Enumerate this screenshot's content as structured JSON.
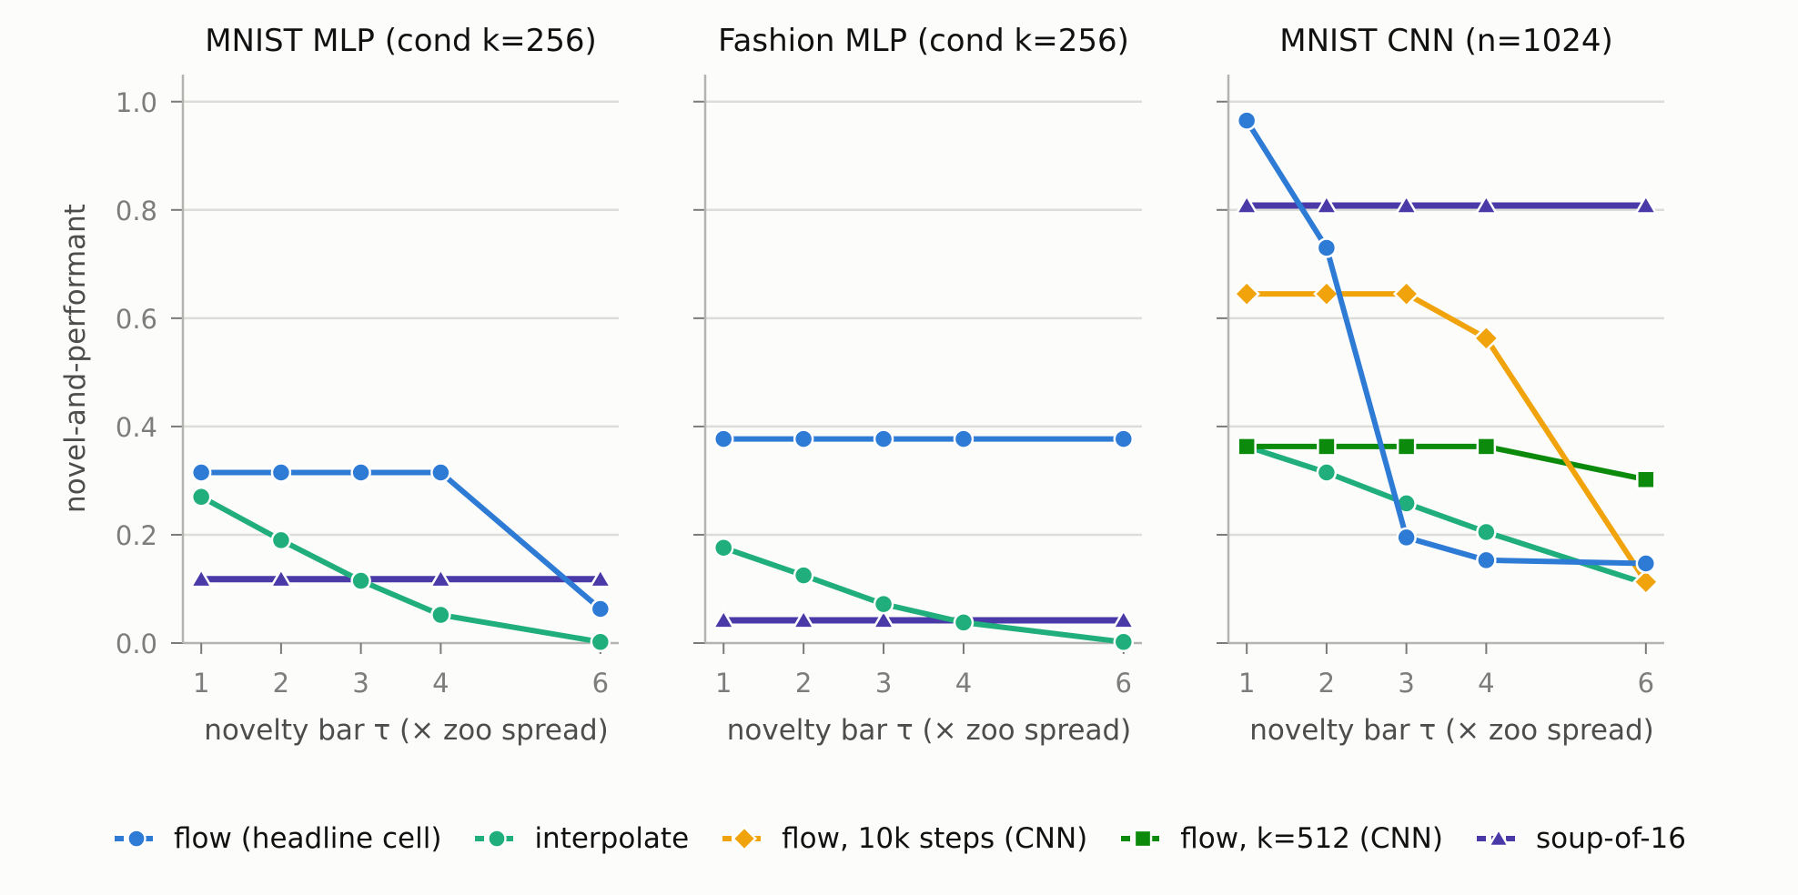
{
  "chart_data": {
    "type": "line",
    "ylabel": "novel-and-performant",
    "xlabel": "novelty bar τ (× zoo spread)",
    "x": [
      1,
      2,
      3,
      4,
      6
    ],
    "xticks": [
      "1",
      "2",
      "3",
      "4",
      "6"
    ],
    "xlim": [
      0.77,
      6.23
    ],
    "ylim": [
      0,
      1.05
    ],
    "yticks": [
      "0.0",
      "0.2",
      "0.4",
      "0.6",
      "0.8",
      "1.0"
    ],
    "grid": "horizontal",
    "legend_position": "bottom",
    "legend": [
      {
        "key": "flow",
        "label": "flow (headline cell)",
        "color": "#2e7bd6",
        "marker": "circle"
      },
      {
        "key": "interp",
        "label": "interpolate",
        "color": "#1fae7c",
        "marker": "circle"
      },
      {
        "key": "flow10k",
        "label": "flow, 10k steps (CNN)",
        "color": "#f0a30a",
        "marker": "diamond"
      },
      {
        "key": "k512",
        "label": "flow, k=512 (CNN)",
        "color": "#0b8a0b",
        "marker": "square"
      },
      {
        "key": "soup",
        "label": "soup-of-16",
        "color": "#4a3aa8",
        "marker": "triangle"
      }
    ],
    "panels": [
      {
        "title": "MNIST MLP (cond k=256)",
        "series": [
          {
            "key": "soup",
            "name": "soup-of-16",
            "values": [
              0.118,
              0.118,
              0.118,
              0.118,
              0.118
            ]
          },
          {
            "key": "interp",
            "name": "interpolate",
            "values": [
              0.27,
              0.19,
              0.115,
              0.052,
              0.002
            ]
          },
          {
            "key": "flow",
            "name": "flow (headline cell)",
            "values": [
              0.315,
              0.315,
              0.315,
              0.315,
              0.063
            ]
          }
        ]
      },
      {
        "title": "Fashion MLP (cond k=256)",
        "series": [
          {
            "key": "soup",
            "name": "soup-of-16",
            "values": [
              0.042,
              0.042,
              0.042,
              0.042,
              0.042
            ]
          },
          {
            "key": "interp",
            "name": "interpolate",
            "values": [
              0.176,
              0.125,
              0.072,
              0.038,
              0.002
            ]
          },
          {
            "key": "flow",
            "name": "flow (headline cell)",
            "values": [
              0.377,
              0.377,
              0.377,
              0.377,
              0.377
            ]
          }
        ]
      },
      {
        "title": "MNIST CNN (n=1024)",
        "series": [
          {
            "key": "soup",
            "name": "soup-of-16",
            "values": [
              0.808,
              0.808,
              0.808,
              0.808,
              0.808
            ]
          },
          {
            "key": "interp",
            "name": "interpolate",
            "values": [
              0.363,
              0.315,
              0.258,
              0.205,
              0.11
            ]
          },
          {
            "key": "k512",
            "name": "flow, k=512 (CNN)",
            "values": [
              0.363,
              0.363,
              0.363,
              0.363,
              0.302
            ]
          },
          {
            "key": "flow10k",
            "name": "flow, 10k steps (CNN)",
            "values": [
              0.645,
              0.645,
              0.645,
              0.563,
              0.113
            ]
          },
          {
            "key": "flow",
            "name": "flow (headline cell)",
            "values": [
              0.965,
              0.73,
              0.195,
              0.153,
              0.147
            ]
          }
        ]
      }
    ]
  }
}
